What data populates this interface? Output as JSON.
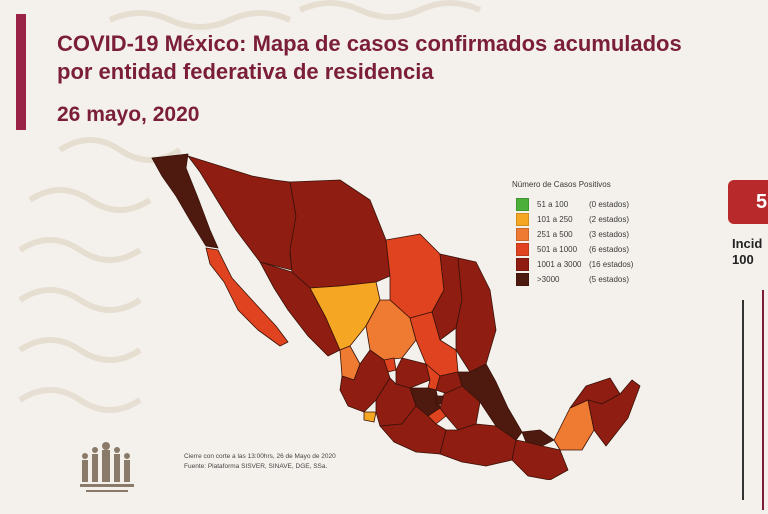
{
  "header": {
    "title_line1": "COVID-19 México: Mapa de casos confirmados acumulados",
    "title_line2": "por entidad federativa de residencia",
    "date": "26 mayo, 2020"
  },
  "legend": {
    "title": "Número de Casos Positivos",
    "items": [
      {
        "range": "51 a 100",
        "count": "(0 estados)",
        "color": "#4caf3a"
      },
      {
        "range": "101 a 250",
        "count": "(2 estados)",
        "color": "#f5a623"
      },
      {
        "range": "251 a 500",
        "count": "(3 estados)",
        "color": "#ef7a32"
      },
      {
        "range": "501 a 1000",
        "count": "(6 estados)",
        "color": "#e0431f"
      },
      {
        "range": "1001 a 3000",
        "count": "(16 estados)",
        "color": "#8f1d12"
      },
      {
        "range": ">3000",
        "count": "(5 estados)",
        "color": "#4e1a10"
      }
    ]
  },
  "footer": {
    "line1": "Cierre con corte a las 13:00hrs, 26 de Mayo de 2020",
    "line2": "Fuente: Plataforma SISVER, SINAVE, DGE, SSa."
  },
  "side_panel": {
    "badge_text": "5",
    "label_line1": "Incid",
    "label_line2": "100"
  },
  "colors": {
    "brand": "#9b2247",
    "title_text": "#7b1e3a"
  }
}
